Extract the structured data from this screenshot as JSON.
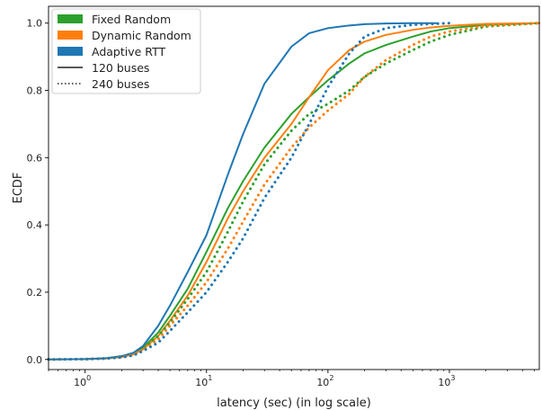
{
  "chart_data": {
    "type": "line",
    "title": "",
    "xlabel": "latency (sec) (in log scale)",
    "ylabel": "ECDF",
    "xscale": "log",
    "xlim": [
      0.5,
      5500
    ],
    "ylim": [
      -0.03,
      1.05
    ],
    "grid": false,
    "legend_position": "top-left",
    "x_ticks": [
      {
        "value": 1,
        "label": "10",
        "exp": "0"
      },
      {
        "value": 10,
        "label": "10",
        "exp": "1"
      },
      {
        "value": 100,
        "label": "10",
        "exp": "2"
      },
      {
        "value": 1000,
        "label": "10",
        "exp": "3"
      }
    ],
    "y_ticks": [
      {
        "value": 0.0,
        "label": "0.0"
      },
      {
        "value": 0.2,
        "label": "0.2"
      },
      {
        "value": 0.4,
        "label": "0.4"
      },
      {
        "value": 0.6,
        "label": "0.6"
      },
      {
        "value": 0.8,
        "label": "0.8"
      },
      {
        "value": 1.0,
        "label": "1.0"
      }
    ],
    "legend": {
      "colors": [
        {
          "label": "Fixed Random",
          "color": "#2ca02c"
        },
        {
          "label": "Dynamic Random",
          "color": "#ff7f0e"
        },
        {
          "label": "Adaptive RTT",
          "color": "#1f77b4"
        }
      ],
      "styles": [
        {
          "label": "120 buses",
          "dash": "solid"
        },
        {
          "label": "240 buses",
          "dash": "dotted"
        }
      ]
    },
    "series": [
      {
        "color": "#2ca02c",
        "dash": "solid",
        "points": [
          [
            0.5,
            0
          ],
          [
            1,
            0.001
          ],
          [
            1.5,
            0.003
          ],
          [
            2,
            0.008
          ],
          [
            2.5,
            0.016
          ],
          [
            3,
            0.035
          ],
          [
            4,
            0.08
          ],
          [
            5,
            0.13
          ],
          [
            7,
            0.21
          ],
          [
            10,
            0.32
          ],
          [
            15,
            0.45
          ],
          [
            20,
            0.53
          ],
          [
            30,
            0.63
          ],
          [
            50,
            0.73
          ],
          [
            70,
            0.78
          ],
          [
            100,
            0.83
          ],
          [
            150,
            0.88
          ],
          [
            200,
            0.91
          ],
          [
            300,
            0.935
          ],
          [
            500,
            0.96
          ],
          [
            700,
            0.975
          ],
          [
            1000,
            0.985
          ],
          [
            2000,
            0.995
          ],
          [
            5500,
            1.0
          ]
        ]
      },
      {
        "color": "#ff7f0e",
        "dash": "solid",
        "points": [
          [
            0.5,
            0
          ],
          [
            1,
            0.001
          ],
          [
            1.5,
            0.003
          ],
          [
            2,
            0.007
          ],
          [
            2.5,
            0.015
          ],
          [
            3,
            0.03
          ],
          [
            4,
            0.07
          ],
          [
            5,
            0.115
          ],
          [
            7,
            0.19
          ],
          [
            10,
            0.29
          ],
          [
            15,
            0.42
          ],
          [
            20,
            0.5
          ],
          [
            30,
            0.6
          ],
          [
            50,
            0.7
          ],
          [
            70,
            0.78
          ],
          [
            100,
            0.86
          ],
          [
            150,
            0.92
          ],
          [
            200,
            0.945
          ],
          [
            300,
            0.965
          ],
          [
            500,
            0.98
          ],
          [
            700,
            0.987
          ],
          [
            1000,
            0.992
          ],
          [
            2000,
            0.998
          ],
          [
            5500,
            1.0
          ]
        ]
      },
      {
        "color": "#1f77b4",
        "dash": "solid",
        "points": [
          [
            0.5,
            0
          ],
          [
            1,
            0.001
          ],
          [
            1.5,
            0.004
          ],
          [
            2,
            0.01
          ],
          [
            2.5,
            0.02
          ],
          [
            3,
            0.04
          ],
          [
            4,
            0.1
          ],
          [
            5,
            0.16
          ],
          [
            7,
            0.26
          ],
          [
            10,
            0.37
          ],
          [
            15,
            0.55
          ],
          [
            20,
            0.67
          ],
          [
            30,
            0.82
          ],
          [
            50,
            0.93
          ],
          [
            70,
            0.97
          ],
          [
            100,
            0.985
          ],
          [
            150,
            0.993
          ],
          [
            200,
            0.997
          ],
          [
            300,
            0.999
          ],
          [
            500,
            1.0
          ],
          [
            800,
            1.0
          ]
        ]
      },
      {
        "color": "#2ca02c",
        "dash": "dotted",
        "points": [
          [
            0.5,
            0
          ],
          [
            1,
            0.001
          ],
          [
            1.5,
            0.003
          ],
          [
            2,
            0.007
          ],
          [
            2.5,
            0.015
          ],
          [
            3,
            0.03
          ],
          [
            4,
            0.07
          ],
          [
            5,
            0.11
          ],
          [
            7,
            0.18
          ],
          [
            10,
            0.26
          ],
          [
            15,
            0.38
          ],
          [
            20,
            0.47
          ],
          [
            30,
            0.58
          ],
          [
            50,
            0.68
          ],
          [
            70,
            0.73
          ],
          [
            100,
            0.76
          ],
          [
            150,
            0.8
          ],
          [
            200,
            0.84
          ],
          [
            300,
            0.88
          ],
          [
            500,
            0.92
          ],
          [
            700,
            0.945
          ],
          [
            1000,
            0.965
          ],
          [
            2000,
            0.99
          ],
          [
            5500,
            1.0
          ]
        ]
      },
      {
        "color": "#ff7f0e",
        "dash": "dotted",
        "points": [
          [
            0.5,
            0
          ],
          [
            1,
            0.001
          ],
          [
            1.5,
            0.003
          ],
          [
            2,
            0.007
          ],
          [
            2.5,
            0.014
          ],
          [
            3,
            0.028
          ],
          [
            4,
            0.06
          ],
          [
            5,
            0.1
          ],
          [
            7,
            0.16
          ],
          [
            10,
            0.23
          ],
          [
            15,
            0.33
          ],
          [
            20,
            0.41
          ],
          [
            30,
            0.52
          ],
          [
            50,
            0.63
          ],
          [
            70,
            0.69
          ],
          [
            100,
            0.74
          ],
          [
            150,
            0.79
          ],
          [
            200,
            0.84
          ],
          [
            300,
            0.89
          ],
          [
            500,
            0.935
          ],
          [
            700,
            0.96
          ],
          [
            1000,
            0.975
          ],
          [
            2000,
            0.992
          ],
          [
            5500,
            1.0
          ]
        ]
      },
      {
        "color": "#1f77b4",
        "dash": "dotted",
        "points": [
          [
            0.5,
            0
          ],
          [
            1,
            0.001
          ],
          [
            1.5,
            0.003
          ],
          [
            2,
            0.006
          ],
          [
            2.5,
            0.012
          ],
          [
            3,
            0.025
          ],
          [
            4,
            0.05
          ],
          [
            5,
            0.085
          ],
          [
            7,
            0.14
          ],
          [
            10,
            0.2
          ],
          [
            15,
            0.29
          ],
          [
            20,
            0.36
          ],
          [
            30,
            0.48
          ],
          [
            50,
            0.6
          ],
          [
            70,
            0.7
          ],
          [
            100,
            0.81
          ],
          [
            150,
            0.91
          ],
          [
            200,
            0.96
          ],
          [
            300,
            0.985
          ],
          [
            500,
            0.995
          ],
          [
            1000,
            1.0
          ]
        ]
      }
    ]
  }
}
